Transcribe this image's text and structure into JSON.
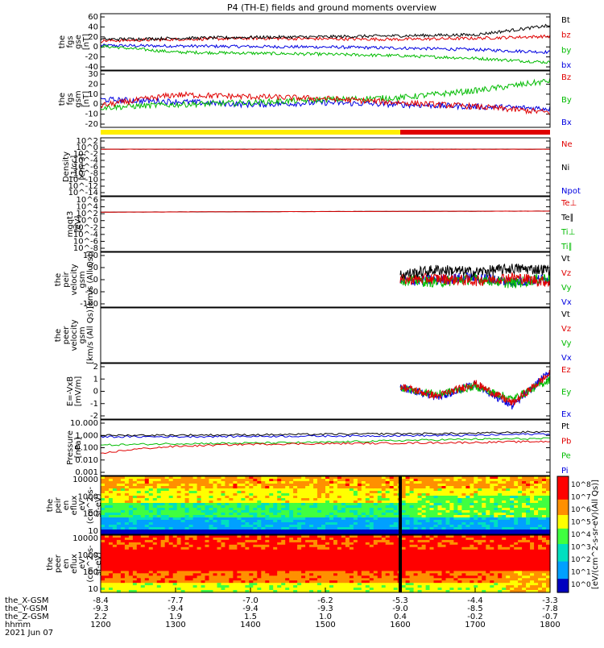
{
  "title": "P4 (TH-E) fields and ground moments overview",
  "xaxis": {
    "rows": [
      {
        "name": "the_X-GSM",
        "values": [
          "-8.4",
          "-7.7",
          "-7.0",
          "-6.2",
          "-5.3",
          "-4.4",
          "-3.3"
        ]
      },
      {
        "name": "the_Y-GSM",
        "values": [
          "-9.3",
          "-9.4",
          "-9.4",
          "-9.3",
          "-9.0",
          "-8.5",
          "-7.8"
        ]
      },
      {
        "name": "the_Z-GSM",
        "values": [
          "2.2",
          "1.9",
          "1.5",
          "1.0",
          "0.4",
          "-0.2",
          "-0.7"
        ]
      },
      {
        "name": "hhmm",
        "values": [
          "1200",
          "1300",
          "1400",
          "1500",
          "1600",
          "1700",
          "1800"
        ]
      }
    ],
    "date": "2021 Jun 07"
  },
  "colorbar_label": "[eV/(cm^2-s-sr-eV)(All Qs)]",
  "panels": [
    {
      "id": "p1",
      "ylabel": [
        "the",
        "fgs",
        "gse",
        "[nT]"
      ],
      "ticks": [
        "60",
        "40",
        "20",
        "0",
        "-20",
        "-40"
      ],
      "legend": [
        {
          "t": "Bt",
          "c": "#000000"
        },
        {
          "t": "bz",
          "c": "#e00000"
        },
        {
          "t": "by",
          "c": "#00bb00"
        },
        {
          "t": "bx",
          "c": "#0000e0"
        }
      ]
    },
    {
      "id": "p2",
      "ylabel": [
        "the",
        "fgs",
        "gsm",
        "[nT]"
      ],
      "ticks": [
        "30",
        "20",
        "10",
        "0",
        "-10",
        "-20"
      ],
      "legend": [
        {
          "t": "Bz",
          "c": "#e00000"
        },
        {
          "t": "By",
          "c": "#00bb00"
        },
        {
          "t": "Bx",
          "c": "#0000e0"
        }
      ]
    },
    {
      "id": "p3",
      "ylabel": [
        "Density",
        "[1/cc]",
        "[cm-3]"
      ],
      "ticks": [
        "10^2",
        "10^0",
        "10^-2",
        "10^-4",
        "10^-6",
        "10^-8",
        "10^-10",
        "10^-12",
        "10^-14"
      ],
      "legend": [
        {
          "t": "Ne",
          "c": "#e00000"
        },
        {
          "t": "Ni",
          "c": "#000000"
        },
        {
          "t": "Npot",
          "c": "#0000e0"
        }
      ]
    },
    {
      "id": "p4",
      "ylabel": [
        "mgqt3",
        "[eV]"
      ],
      "ticks": [
        "10^6",
        "10^4",
        "10^2",
        "10^0",
        "10^-2",
        "10^-4",
        "10^-6",
        "10^-8"
      ],
      "legend": [
        {
          "t": "Te⊥",
          "c": "#e00000"
        },
        {
          "t": "Te∥",
          "c": "#000000"
        },
        {
          "t": "Ti⊥",
          "c": "#00bb00"
        },
        {
          "t": "Ti∥",
          "c": "#00bb00"
        }
      ]
    },
    {
      "id": "p5",
      "ylabel": [
        "the",
        "peir",
        "velocity",
        "gsm",
        "[km/s (All Qs)]"
      ],
      "ticks": [
        "100",
        "50",
        "0",
        "-50",
        "-100"
      ],
      "legend": [
        {
          "t": "Vt",
          "c": "#000000"
        },
        {
          "t": "Vz",
          "c": "#e00000"
        },
        {
          "t": "Vy",
          "c": "#00bb00"
        },
        {
          "t": "Vx",
          "c": "#0000e0"
        }
      ]
    },
    {
      "id": "p6",
      "ylabel": [
        "the",
        "peer",
        "velocity",
        "gsm",
        "[km/s (All Qs)]"
      ],
      "ticks": [],
      "legend": [
        {
          "t": "Vt",
          "c": "#000000"
        },
        {
          "t": "Vz",
          "c": "#e00000"
        },
        {
          "t": "Vy",
          "c": "#00bb00"
        },
        {
          "t": "Vx",
          "c": "#0000e0"
        }
      ]
    },
    {
      "id": "p7",
      "ylabel": [
        "E=-VxB",
        "[mV/m]"
      ],
      "ticks": [
        "2",
        "1",
        "0",
        "-1",
        "-2"
      ],
      "legend": [
        {
          "t": "Ez",
          "c": "#e00000"
        },
        {
          "t": "Ey",
          "c": "#00bb00"
        },
        {
          "t": "Ex",
          "c": "#0000e0"
        }
      ]
    },
    {
      "id": "p8",
      "ylabel": [
        "Pressure",
        "[nPa]"
      ],
      "ticks": [
        "10.000",
        "1.000",
        "0.100",
        "0.010",
        "0.001"
      ],
      "legend": [
        {
          "t": "Pt",
          "c": "#000000"
        },
        {
          "t": "Pb",
          "c": "#e00000"
        },
        {
          "t": "Pe",
          "c": "#00bb00"
        },
        {
          "t": "Pi",
          "c": "#0000e0"
        }
      ]
    },
    {
      "id": "p9",
      "ylabel": [
        "the",
        "peir",
        "en",
        "eflux",
        "eV",
        "(cm^2-s-",
        "sr-eV)"
      ],
      "ticks": [
        "10000",
        "1000",
        "100",
        "10"
      ],
      "legend": []
    },
    {
      "id": "p10",
      "ylabel": [
        "the",
        "peer",
        "en",
        "eflux",
        "eV",
        "(cm^2-s-",
        "sr-eV)"
      ],
      "ticks": [
        "10000",
        "1000",
        "100",
        "10"
      ],
      "legend": []
    }
  ],
  "colorbar_ticks": [
    "10^8",
    "10^7",
    "10^6",
    "10^5",
    "10^4",
    "10^3",
    "10^2",
    "10^1",
    "10^0"
  ],
  "chart_data": [
    {
      "type": "line",
      "title": "P4 (TH-E) fields and ground moments overview",
      "ylabel": "the fgs gse [nT]",
      "ylim": [
        -40,
        65
      ],
      "x": [
        1200,
        1300,
        1400,
        1500,
        1600,
        1700,
        1800
      ],
      "series": [
        {
          "name": "Bt",
          "values": [
            15,
            17,
            19,
            20,
            22,
            24,
            42
          ]
        },
        {
          "name": "bz",
          "values": [
            12,
            15,
            17,
            16,
            15,
            17,
            21
          ]
        },
        {
          "name": "by",
          "values": [
            2,
            -10,
            -12,
            -14,
            -17,
            -22,
            -30
          ]
        },
        {
          "name": "bx",
          "values": [
            3,
            2,
            1,
            0,
            -2,
            -5,
            -10
          ]
        }
      ]
    },
    {
      "type": "line",
      "ylabel": "the fgs gsm [nT]",
      "ylim": [
        -25,
        30
      ],
      "x": [
        1200,
        1300,
        1400,
        1500,
        1600,
        1700,
        1800
      ],
      "series": [
        {
          "name": "Bz",
          "values": [
            -3,
            8,
            6,
            4,
            0,
            -4,
            -10
          ]
        },
        {
          "name": "By",
          "values": [
            -5,
            -2,
            0,
            3,
            5,
            12,
            22
          ]
        },
        {
          "name": "Bx",
          "values": [
            3,
            1,
            -2,
            0,
            -2,
            -4,
            -6
          ]
        }
      ]
    },
    {
      "type": "line",
      "ylabel": "Density [1/cc] [cm-3]",
      "x": [
        1200,
        1800
      ],
      "series": [
        {
          "name": "Ne",
          "values": [
            0.3,
            0.3
          ]
        },
        {
          "name": "Ni",
          "values": [
            0.3,
            0.3
          ]
        }
      ]
    },
    {
      "type": "line",
      "ylabel": "mgqt3 [eV]",
      "x": [
        1200,
        1800
      ],
      "series": [
        {
          "name": "Te⊥",
          "values": [
            300,
            600
          ]
        },
        {
          "name": "Te∥",
          "values": [
            300,
            600
          ]
        }
      ]
    },
    {
      "type": "line",
      "ylabel": "the peir velocity gsm [km/s (All Qs)]",
      "ylim": [
        -100,
        100
      ],
      "x": [
        1600,
        1650,
        1700,
        1750,
        1800
      ],
      "series": [
        {
          "name": "Vt",
          "values": [
            20,
            40,
            30,
            45,
            40
          ]
        },
        {
          "name": "Vz",
          "values": [
            0,
            5,
            -5,
            10,
            -10
          ]
        },
        {
          "name": "Vy",
          "values": [
            0,
            -10,
            5,
            -15,
            10
          ]
        },
        {
          "name": "Vx",
          "values": [
            -5,
            0,
            10,
            -10,
            5
          ]
        }
      ]
    },
    {
      "type": "line",
      "ylabel": "E=-VxB [mV/m]",
      "ylim": [
        -2.5,
        2.5
      ],
      "x": [
        1600,
        1650,
        1700,
        1750,
        1800
      ],
      "series": [
        {
          "name": "Ez",
          "values": [
            0.5,
            -0.5,
            0.8,
            -1.2,
            1.8
          ]
        },
        {
          "name": "Ey",
          "values": [
            0.3,
            -0.3,
            0.5,
            -0.8,
            1.2
          ]
        },
        {
          "name": "Ex",
          "values": [
            0.4,
            -0.6,
            0.7,
            -1.5,
            2.0
          ]
        }
      ]
    },
    {
      "type": "line",
      "ylabel": "Pressure [nPa]",
      "ylim": [
        0.001,
        10
      ],
      "x": [
        1200,
        1300,
        1400,
        1500,
        1600,
        1700,
        1800
      ],
      "series": [
        {
          "name": "Pt",
          "values": [
            0.9,
            0.95,
            1.0,
            1.1,
            1.2,
            1.3,
            1.8
          ]
        },
        {
          "name": "Pb",
          "values": [
            0.03,
            0.12,
            0.18,
            0.2,
            0.22,
            0.25,
            0.3
          ]
        },
        {
          "name": "Pe",
          "values": [
            0.15,
            0.2,
            0.22,
            0.25,
            0.35,
            0.45,
            0.5
          ]
        },
        {
          "name": "Pi",
          "values": [
            0.7,
            0.7,
            0.75,
            0.8,
            0.85,
            0.9,
            1.2
          ]
        }
      ]
    },
    {
      "type": "heatmap",
      "ylabel": "the peir en eflux",
      "ylim": [
        5,
        20000
      ]
    },
    {
      "type": "heatmap",
      "ylabel": "the peer en eflux",
      "ylim": [
        5,
        20000
      ]
    }
  ]
}
